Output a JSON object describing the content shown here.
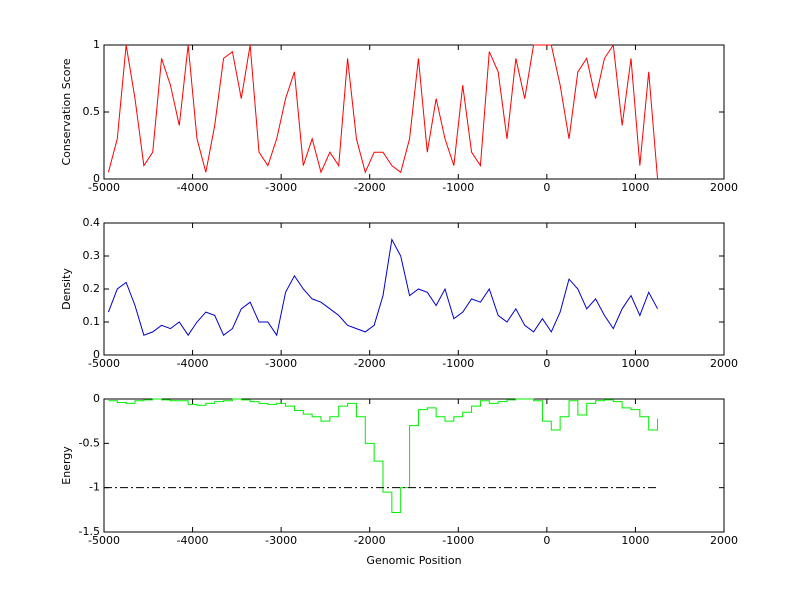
{
  "chart_data": [
    {
      "type": "line",
      "ylabel": "Conservation Score",
      "x": [
        -4950,
        -4850,
        -4750,
        -4650,
        -4550,
        -4450,
        -4350,
        -4250,
        -4150,
        -4050,
        -3950,
        -3850,
        -3750,
        -3650,
        -3550,
        -3450,
        -3350,
        -3250,
        -3150,
        -3050,
        -2950,
        -2850,
        -2750,
        -2650,
        -2550,
        -2450,
        -2350,
        -2250,
        -2150,
        -2050,
        -1950,
        -1850,
        -1750,
        -1650,
        -1550,
        -1450,
        -1350,
        -1250,
        -1150,
        -1050,
        -950,
        -850,
        -750,
        -650,
        -550,
        -450,
        -350,
        -250,
        -150,
        -50,
        50,
        150,
        250,
        350,
        450,
        550,
        650,
        750,
        850,
        950,
        1050,
        1150,
        1250
      ],
      "series": [
        {
          "color": "#ff0000",
          "values": [
            0.05,
            0.3,
            1,
            0.6,
            0.1,
            0.2,
            0.9,
            0.7,
            0.4,
            1,
            0.3,
            0.05,
            0.4,
            0.9,
            0.95,
            0.6,
            1,
            0.2,
            0.1,
            0.3,
            0.6,
            0.8,
            0.1,
            0.3,
            0.05,
            0.2,
            0.1,
            0.9,
            0.3,
            0.05,
            0.2,
            0.2,
            0.1,
            0.05,
            0.3,
            0.9,
            0.2,
            0.6,
            0.3,
            0.1,
            0.7,
            0.2,
            0.1,
            0.95,
            0.8,
            0.3,
            0.9,
            0.6,
            1,
            1,
            1,
            0.7,
            0.3,
            0.8,
            0.9,
            0.6,
            0.9,
            1,
            0.4,
            0.9,
            0.1,
            0.8,
            0
          ]
        }
      ],
      "xlim": [
        -5000,
        2000
      ],
      "xticks": [
        -5000,
        -4000,
        -3000,
        -2000,
        -1000,
        0,
        1000,
        2000
      ],
      "ylim": [
        0,
        1
      ],
      "yticks": [
        0,
        0.5,
        1
      ]
    },
    {
      "type": "line",
      "ylabel": "Density",
      "x": [
        -4950,
        -4850,
        -4750,
        -4650,
        -4550,
        -4450,
        -4350,
        -4250,
        -4150,
        -4050,
        -3950,
        -3850,
        -3750,
        -3650,
        -3550,
        -3450,
        -3350,
        -3250,
        -3150,
        -3050,
        -2950,
        -2850,
        -2750,
        -2650,
        -2550,
        -2450,
        -2350,
        -2250,
        -2150,
        -2050,
        -1950,
        -1850,
        -1750,
        -1650,
        -1550,
        -1450,
        -1350,
        -1250,
        -1150,
        -1050,
        -950,
        -850,
        -750,
        -650,
        -550,
        -450,
        -350,
        -250,
        -150,
        -50,
        50,
        150,
        250,
        350,
        450,
        550,
        650,
        750,
        850,
        950,
        1050,
        1150,
        1250
      ],
      "series": [
        {
          "color": "#0000cc",
          "values": [
            0.13,
            0.2,
            0.22,
            0.15,
            0.06,
            0.07,
            0.09,
            0.08,
            0.1,
            0.06,
            0.1,
            0.13,
            0.12,
            0.06,
            0.08,
            0.14,
            0.16,
            0.1,
            0.1,
            0.06,
            0.19,
            0.24,
            0.2,
            0.17,
            0.16,
            0.14,
            0.12,
            0.09,
            0.08,
            0.07,
            0.09,
            0.18,
            0.35,
            0.3,
            0.18,
            0.2,
            0.19,
            0.15,
            0.2,
            0.11,
            0.13,
            0.17,
            0.16,
            0.2,
            0.12,
            0.1,
            0.14,
            0.09,
            0.07,
            0.11,
            0.07,
            0.13,
            0.23,
            0.2,
            0.14,
            0.17,
            0.12,
            0.08,
            0.14,
            0.18,
            0.12,
            0.19,
            0.14
          ]
        }
      ],
      "xlim": [
        -5000,
        2000
      ],
      "xticks": [
        -5000,
        -4000,
        -3000,
        -2000,
        -1000,
        0,
        1000,
        2000
      ],
      "ylim": [
        0,
        0.4
      ],
      "yticks": [
        0,
        0.1,
        0.2,
        0.3,
        0.4
      ]
    },
    {
      "type": "line",
      "ylabel": "Energy",
      "xlabel": "Genomic Position",
      "x": [
        -4950,
        -4850,
        -4750,
        -4650,
        -4550,
        -4450,
        -4350,
        -4250,
        -4150,
        -4050,
        -3950,
        -3850,
        -3750,
        -3650,
        -3550,
        -3450,
        -3350,
        -3250,
        -3150,
        -3050,
        -2950,
        -2850,
        -2750,
        -2650,
        -2550,
        -2450,
        -2350,
        -2250,
        -2150,
        -2050,
        -1950,
        -1850,
        -1750,
        -1650,
        -1550,
        -1450,
        -1350,
        -1250,
        -1150,
        -1050,
        -950,
        -850,
        -750,
        -650,
        -550,
        -450,
        -350,
        -250,
        -150,
        -50,
        50,
        150,
        250,
        350,
        450,
        550,
        650,
        750,
        850,
        950,
        1050,
        1150,
        1250
      ],
      "series": [
        {
          "color": "#00ee00",
          "step": true,
          "values": [
            -0.02,
            -0.04,
            -0.05,
            -0.02,
            -0.01,
            0,
            -0.01,
            -0.02,
            -0.02,
            -0.06,
            -0.07,
            -0.05,
            -0.03,
            -0.02,
            0,
            -0.01,
            -0.03,
            -0.05,
            -0.06,
            -0.05,
            -0.08,
            -0.13,
            -0.17,
            -0.2,
            -0.25,
            -0.2,
            -0.08,
            -0.05,
            -0.2,
            -0.5,
            -0.7,
            -1.05,
            -1.28,
            -1.0,
            -0.3,
            -0.12,
            -0.1,
            -0.2,
            -0.25,
            -0.2,
            -0.15,
            -0.08,
            -0.02,
            -0.05,
            -0.03,
            -0.01,
            0,
            0,
            -0.02,
            -0.25,
            -0.35,
            -0.2,
            -0.02,
            -0.18,
            -0.05,
            -0.02,
            -0.01,
            -0.03,
            -0.1,
            -0.12,
            -0.2,
            -0.35,
            -0.22
          ]
        },
        {
          "color": "#000000",
          "dash": "dash-dot",
          "x": [
            -5000,
            1250
          ],
          "values": [
            -1,
            -1
          ]
        }
      ],
      "xlim": [
        -5000,
        2000
      ],
      "xticks": [
        -5000,
        -4000,
        -3000,
        -2000,
        -1000,
        0,
        1000,
        2000
      ],
      "ylim": [
        -1.5,
        0
      ],
      "yticks": [
        -1.5,
        -1,
        -0.5,
        0
      ]
    }
  ]
}
